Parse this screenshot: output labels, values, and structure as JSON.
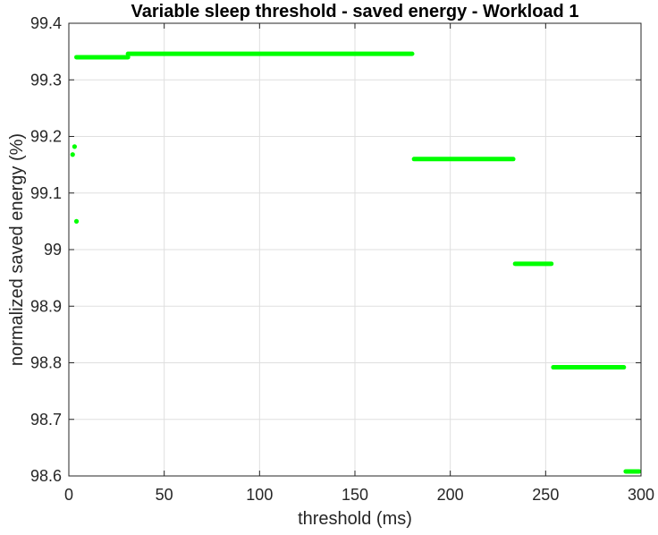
{
  "chart_data": {
    "type": "scatter",
    "title": "Variable sleep threshold - saved energy - Workload 1",
    "xlabel": "threshold (ms)",
    "ylabel": "normalized saved energy (%)",
    "xlim": [
      0,
      300
    ],
    "ylim": [
      98.6,
      99.4
    ],
    "xticks": [
      0,
      50,
      100,
      150,
      200,
      250,
      300
    ],
    "yticks": [
      98.6,
      98.7,
      98.8,
      98.9,
      99,
      99.1,
      99.2,
      99.3,
      99.4
    ],
    "xtick_labels": [
      "0",
      "50",
      "100",
      "150",
      "200",
      "250",
      "300"
    ],
    "ytick_labels": [
      "98.6",
      "98.7",
      "98.8",
      "98.9",
      "99",
      "99.1",
      "99.2",
      "99.3",
      "99.4"
    ],
    "grid": true,
    "marker_color": "#00ff00",
    "points": [
      {
        "x": 2,
        "y": 99.168
      },
      {
        "x": 3,
        "y": 99.182
      },
      {
        "x": 4,
        "y": 99.05
      }
    ],
    "segments": [
      {
        "x_start": 4,
        "x_end": 31,
        "y": 99.34
      },
      {
        "x_start": 31,
        "x_end": 180,
        "y": 99.346
      },
      {
        "x_start": 181,
        "x_end": 233,
        "y": 99.16
      },
      {
        "x_start": 234,
        "x_end": 253,
        "y": 98.975
      },
      {
        "x_start": 254,
        "x_end": 291,
        "y": 98.792
      },
      {
        "x_start": 292,
        "x_end": 299,
        "y": 98.608
      }
    ]
  }
}
